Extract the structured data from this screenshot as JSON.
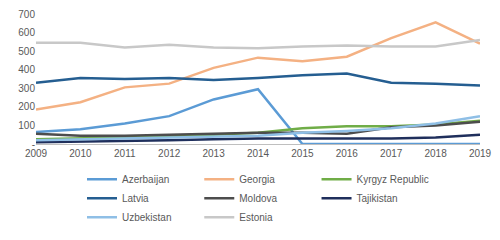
{
  "chart_data": {
    "type": "line",
    "categories": [
      "2009",
      "2010",
      "2011",
      "2012",
      "2013",
      "2014",
      "2015",
      "2016",
      "2017",
      "2018",
      "2019"
    ],
    "series": [
      {
        "name": "Azerbaijan",
        "color": "#5b9bd5",
        "values": [
          65,
          80,
          110,
          150,
          240,
          295,
          0,
          0,
          0,
          0,
          0
        ]
      },
      {
        "name": "Georgia",
        "color": "#f4b183",
        "values": [
          185,
          225,
          305,
          325,
          410,
          465,
          445,
          470,
          570,
          655,
          540
        ]
      },
      {
        "name": "Kyrgyz Republic",
        "color": "#70ad47",
        "values": [
          25,
          30,
          35,
          40,
          50,
          60,
          85,
          95,
          95,
          105,
          125
        ]
      },
      {
        "name": "Latvia",
        "color": "#255e91",
        "values": [
          330,
          355,
          350,
          355,
          345,
          355,
          370,
          380,
          330,
          325,
          315
        ]
      },
      {
        "name": "Moldova",
        "color": "#4d4d4d",
        "values": [
          55,
          45,
          45,
          50,
          55,
          60,
          60,
          55,
          90,
          100,
          120
        ]
      },
      {
        "name": "Tajikistan",
        "color": "#1f2f5c",
        "values": [
          10,
          12,
          15,
          20,
          25,
          30,
          30,
          28,
          30,
          35,
          50
        ]
      },
      {
        "name": "Uzbekistan",
        "color": "#8fbfe6",
        "values": [
          20,
          25,
          30,
          35,
          40,
          45,
          60,
          70,
          85,
          110,
          150
        ]
      },
      {
        "name": "Estonia",
        "color": "#c8c8c8",
        "values": [
          545,
          545,
          520,
          535,
          520,
          515,
          525,
          530,
          525,
          525,
          560
        ]
      }
    ],
    "ylim": [
      0,
      700
    ],
    "yticks": [
      {
        "value": 0,
        "label": "-"
      },
      100,
      200,
      300,
      400,
      500,
      600,
      700
    ],
    "grid": false,
    "legend": "bottom"
  }
}
